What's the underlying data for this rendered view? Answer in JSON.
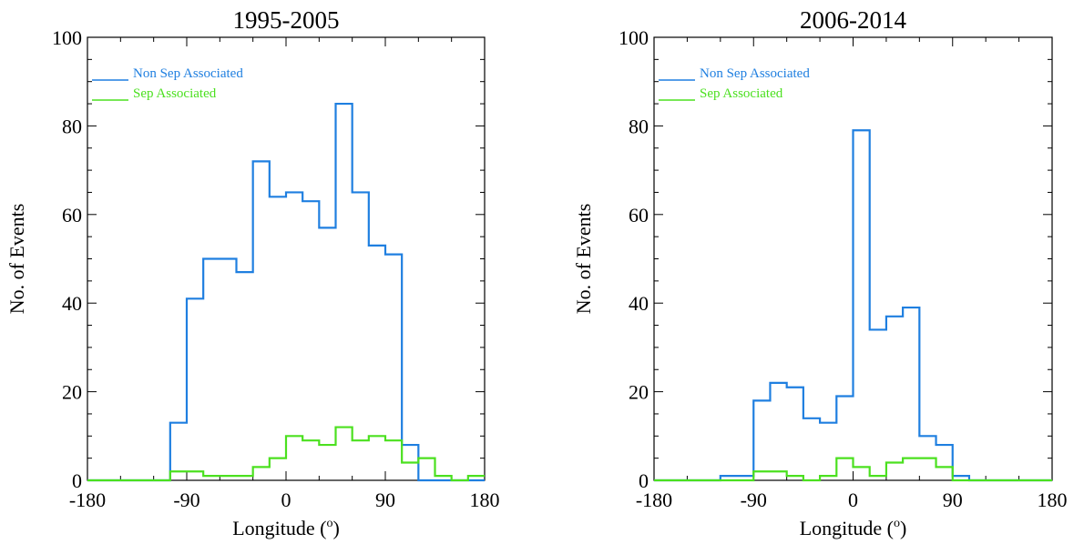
{
  "figure": {
    "chart_data": [
      {
        "type": "step",
        "title": "1995-2005",
        "xlabel": "Longitude (",
        "xlabel_sup": "o",
        "xlabel_end": ")",
        "ylabel": "No. of Events",
        "xlim": [
          -180,
          180
        ],
        "ylim": [
          0,
          100
        ],
        "xticks": [
          -180,
          -90,
          0,
          90,
          180
        ],
        "xtick_labels": [
          "-180",
          "-90",
          "0",
          "90",
          "180"
        ],
        "yticks": [
          0,
          20,
          40,
          60,
          80,
          100
        ],
        "ytick_labels": [
          "0",
          "20",
          "40",
          "60",
          "80",
          "100"
        ],
        "bin_edges": [
          -180,
          -165,
          -150,
          -135,
          -120,
          -105,
          -90,
          -75,
          -60,
          -45,
          -30,
          -15,
          0,
          15,
          30,
          45,
          60,
          75,
          90,
          105,
          120,
          135,
          150,
          165,
          180
        ],
        "series": [
          {
            "name": "Non Sep Associated",
            "color": "#1f7fe0",
            "values": [
              0,
              0,
              0,
              0,
              0,
              13,
              41,
              50,
              50,
              47,
              72,
              64,
              65,
              63,
              57,
              85,
              65,
              53,
              51,
              8,
              0,
              0,
              0,
              0
            ]
          },
          {
            "name": "Sep Associated",
            "color": "#4be01f",
            "values": [
              0,
              0,
              0,
              0,
              0,
              2,
              2,
              1,
              1,
              1,
              3,
              5,
              10,
              9,
              8,
              12,
              9,
              10,
              9,
              4,
              5,
              1,
              0,
              1
            ]
          }
        ],
        "legend": "top-left"
      },
      {
        "type": "step",
        "title": "2006-2014",
        "xlabel": "Longitude (",
        "xlabel_sup": "o",
        "xlabel_end": ")",
        "ylabel": "No. of Events",
        "xlim": [
          -180,
          180
        ],
        "ylim": [
          0,
          100
        ],
        "xticks": [
          -180,
          -90,
          0,
          90,
          180
        ],
        "xtick_labels": [
          "-180",
          "-90",
          "0",
          "90",
          "180"
        ],
        "yticks": [
          0,
          20,
          40,
          60,
          80,
          100
        ],
        "ytick_labels": [
          "0",
          "20",
          "40",
          "60",
          "80",
          "100"
        ],
        "bin_edges": [
          -180,
          -165,
          -150,
          -135,
          -120,
          -105,
          -90,
          -75,
          -60,
          -45,
          -30,
          -15,
          0,
          15,
          30,
          45,
          60,
          75,
          90,
          105,
          120,
          135,
          150,
          165,
          180
        ],
        "series": [
          {
            "name": "Non Sep Associated",
            "color": "#1f7fe0",
            "values": [
              0,
              0,
              0,
              0,
              1,
              1,
              18,
              22,
              21,
              14,
              13,
              19,
              79,
              34,
              37,
              39,
              10,
              8,
              1,
              0,
              0,
              0,
              0,
              0
            ]
          },
          {
            "name": "Sep Associated",
            "color": "#4be01f",
            "values": [
              0,
              0,
              0,
              0,
              0,
              0,
              2,
              2,
              1,
              0,
              1,
              5,
              3,
              1,
              4,
              5,
              5,
              3,
              0,
              0,
              0,
              0,
              0,
              0
            ]
          }
        ],
        "legend": "top-left"
      }
    ]
  }
}
